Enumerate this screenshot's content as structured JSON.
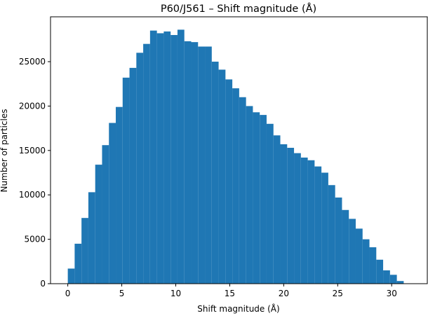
{
  "chart_data": {
    "type": "histogram",
    "title": "P60/J561 – Shift magnitude (Å)",
    "xlabel": "Shift magnitude (Å)",
    "ylabel": "Number of particles",
    "color": "#1f77b4",
    "bins": [
      0,
      0.635,
      1.27,
      1.905,
      2.54,
      3.175,
      3.81,
      4.445,
      5.08,
      5.715,
      6.35,
      6.985,
      7.62,
      8.255,
      8.89,
      9.525,
      10.16,
      10.795,
      11.43,
      12.065,
      12.7,
      13.335,
      13.97,
      14.605,
      15.24,
      15.875,
      16.51,
      17.145,
      17.78,
      18.415,
      19.05,
      19.685,
      20.32,
      20.955,
      21.59,
      22.225,
      22.86,
      23.495,
      24.13,
      24.765,
      25.4,
      26.035,
      26.67,
      27.305,
      27.94,
      28.575,
      29.21,
      29.845,
      30.48,
      31.115
    ],
    "values": [
      1700,
      4500,
      7400,
      10300,
      13400,
      15600,
      18100,
      19900,
      23200,
      24300,
      26000,
      27000,
      28500,
      28200,
      28400,
      28000,
      28600,
      27300,
      27200,
      26700,
      26700,
      25000,
      24100,
      23000,
      22000,
      21000,
      20000,
      19300,
      19000,
      18000,
      16700,
      15700,
      15300,
      14700,
      14200,
      13900,
      13200,
      12500,
      11100,
      9700,
      8300,
      7300,
      6200,
      5000,
      4100,
      2700,
      1500,
      1000,
      300
    ],
    "xlim": [
      -1.6,
      33.3
    ],
    "ylim": [
      0,
      30050
    ],
    "xticks": [
      0,
      5,
      10,
      15,
      20,
      25,
      30
    ],
    "yticks": [
      0,
      5000,
      10000,
      15000,
      20000,
      25000
    ]
  }
}
